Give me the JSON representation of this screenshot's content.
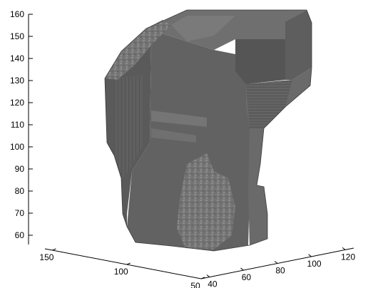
{
  "chart_data": {
    "type": "3d-surface",
    "title": "",
    "xlabel": "",
    "ylabel": "",
    "zlabel": "",
    "grid": false,
    "axes": {
      "z": {
        "range": [
          55,
          163
        ],
        "ticks": [
          60,
          70,
          80,
          90,
          100,
          110,
          120,
          130,
          140,
          150,
          160
        ]
      },
      "x": {
        "range": [
          35,
          125
        ],
        "ticks": [
          40,
          60,
          80,
          100,
          120
        ]
      },
      "y": {
        "range": [
          50,
          155
        ],
        "ticks": [
          50,
          100,
          150
        ]
      }
    },
    "surface": {
      "description_visible": false,
      "colors": {
        "base": "#6e6e6e",
        "dark": "#4a4a4a",
        "mid": "#7b7b7b",
        "light": "#9a9a9a",
        "edge": "#333333"
      }
    }
  }
}
